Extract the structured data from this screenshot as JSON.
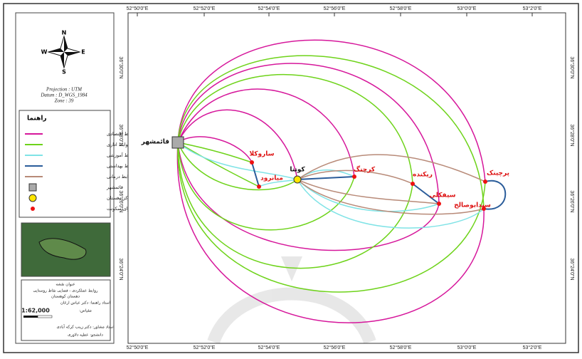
{
  "coordinates": {
    "top": [
      "52°50'0\"E",
      "52°52'0\"E",
      "52°54'0\"E",
      "52°56'0\"E",
      "52°58'0\"E",
      "53°0'0\"E",
      "53°2'0\"E"
    ],
    "bottom": [
      "52°50'0\"E",
      "52°52'0\"E",
      "52°54'0\"E",
      "52°56'0\"E",
      "52°58'0\"E",
      "53°0'0\"E",
      "53°2'0\"E"
    ],
    "left": [
      "36°30'0\"N",
      "36°28'0\"N",
      "36°26'0\"N",
      "36°24'0\"N"
    ],
    "right": [
      "36°30'0\"N",
      "36°28'0\"N",
      "36°26'0\"N",
      "36°24'0\"N"
    ]
  },
  "north_arrow": {
    "n": "N",
    "s": "S",
    "e": "E",
    "w": "W"
  },
  "projection": [
    "Projection : UTM",
    "Datum : D_WGS_1984",
    "Zone : 39"
  ],
  "legend": {
    "title": "راهنما",
    "items": [
      "روابط اقتصادی",
      "روابط اداری",
      "روابط آموزشی",
      "روابط بهداشتی",
      "روابط درمانی",
      "قائمشهر",
      "مرکز دهستان",
      "نقاط روستایی دارای سکونت"
    ]
  },
  "places": [
    "قائمشهر",
    "ساروکلا",
    "میانرود",
    "کوتنا",
    "کرچنگ",
    "ریکنده",
    "سیفکلی",
    "پرچینک",
    "سیدابوصالح"
  ],
  "title_block": [
    "عنوان نقشه",
    "روابط عملکردی - فضایی نقاط روستایی",
    "دهستان کوهستان",
    "استاد راهنما: دکتر عباس ارغان",
    "مقیاس:",
    "1:62,000",
    "استاد مشاور: دکتر زینب کرکه آبادی",
    "دانشجو: عطیه دلاوری"
  ]
}
